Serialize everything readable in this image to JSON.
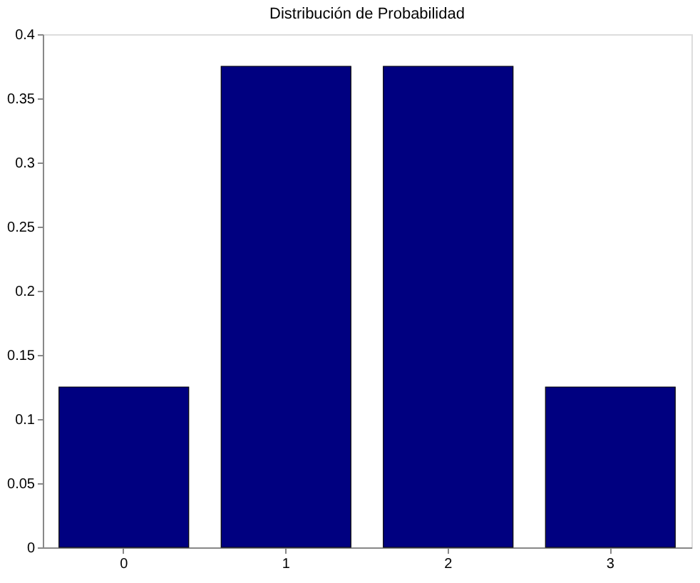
{
  "chart_data": {
    "type": "bar",
    "title": "Distribución de Probabilidad",
    "categories": [
      "0",
      "1",
      "2",
      "3"
    ],
    "values": [
      0.125,
      0.375,
      0.375,
      0.125
    ],
    "color": "#000080",
    "ylim": [
      0,
      0.4
    ],
    "yticks": [
      0,
      0.05,
      0.1,
      0.15,
      0.2,
      0.25,
      0.3,
      0.35,
      0.4
    ],
    "grid": false
  }
}
